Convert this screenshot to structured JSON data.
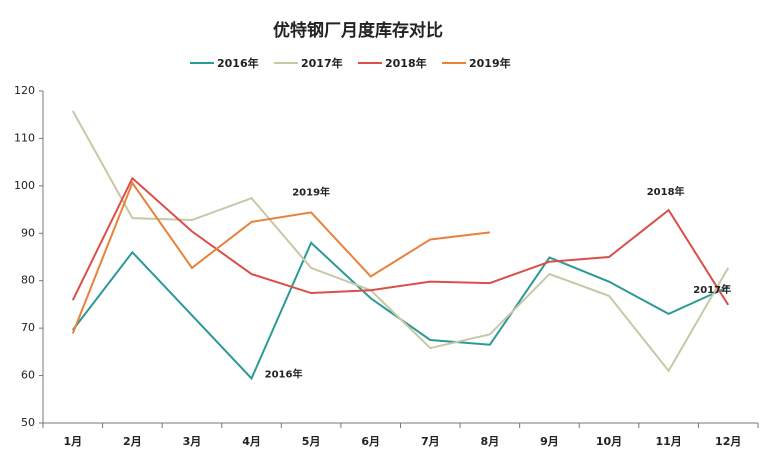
{
  "chart_data": {
    "type": "line",
    "title": "优特钢厂月度库存对比",
    "categories": [
      "1月",
      "2月",
      "3月",
      "4月",
      "5月",
      "6月",
      "7月",
      "8月",
      "9月",
      "10月",
      "11月",
      "12月"
    ],
    "series": [
      {
        "name": "2016年",
        "color": "#2a9a94",
        "values": [
          69.6,
          86,
          72.7,
          59.4,
          88,
          76.3,
          67.5,
          66.5,
          84.9,
          79.8,
          73,
          78.7
        ]
      },
      {
        "name": "2017年",
        "color": "#c8c8a6",
        "values": [
          115.8,
          93.2,
          92.8,
          97.4,
          82.7,
          78,
          65.8,
          68.7,
          81.4,
          76.8,
          61,
          82.7
        ]
      },
      {
        "name": "2018年",
        "color": "#dc4e47",
        "values": [
          75.9,
          101.6,
          90.4,
          81.4,
          77.4,
          78,
          79.8,
          79.5,
          84,
          85,
          94.9,
          74.9
        ]
      },
      {
        "name": "2019年",
        "color": "#e8823a",
        "values": [
          68.9,
          100.6,
          82.7,
          92.4,
          94.4,
          80.9,
          88.7,
          90.2,
          null,
          null,
          null,
          null
        ]
      }
    ],
    "annotations": [
      {
        "text": "2019年",
        "series": 3,
        "index": 4
      },
      {
        "text": "2018年",
        "series": 2,
        "index": 10
      },
      {
        "text": "2016年",
        "series": 0,
        "index": 3
      },
      {
        "text": "2017年",
        "series": 1,
        "index": 11
      }
    ],
    "ylim": [
      50,
      120
    ],
    "yticks": [
      50,
      60,
      70,
      80,
      90,
      100,
      110,
      120
    ],
    "grid": false,
    "legend": "top"
  }
}
